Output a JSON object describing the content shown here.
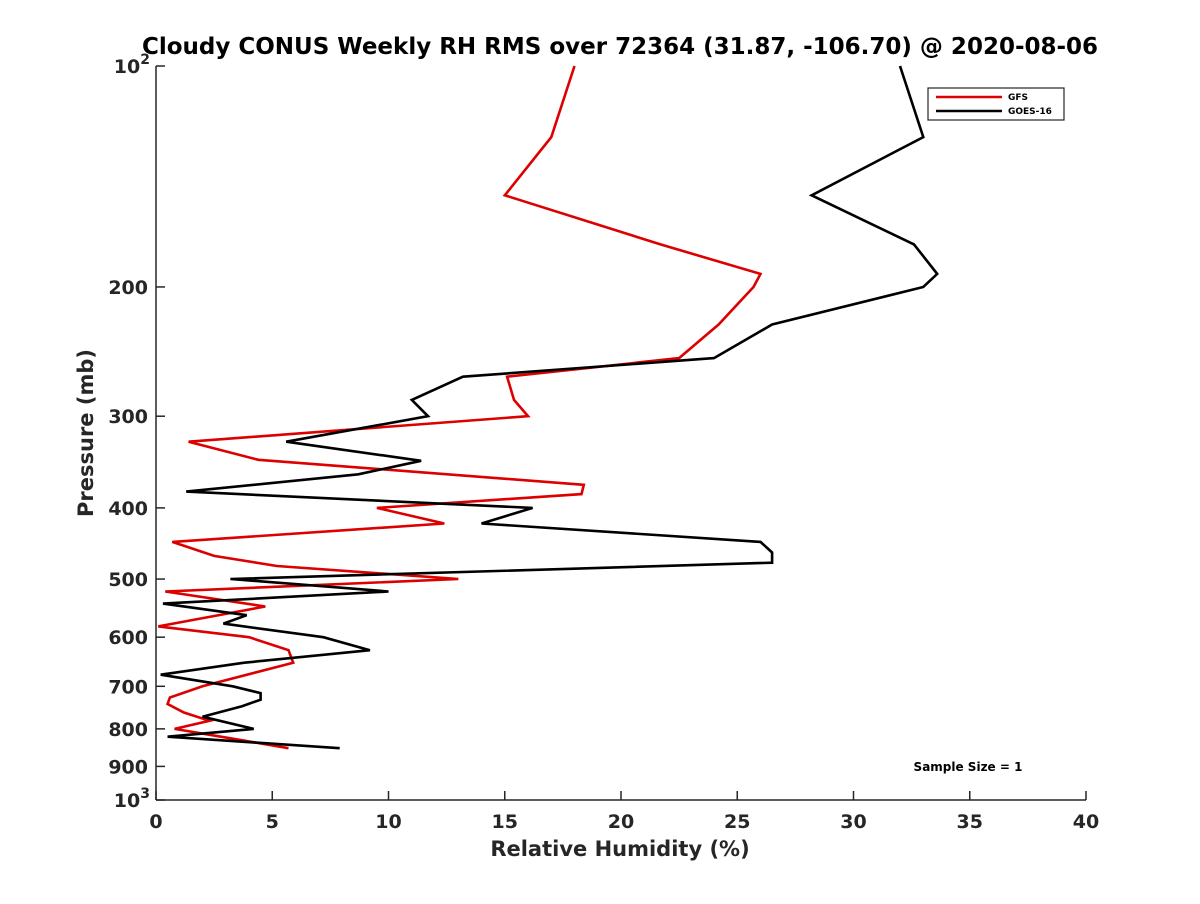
{
  "chart_data": {
    "type": "line",
    "title": "Cloudy CONUS Weekly RH RMS over 72364 (31.87, -106.70) @ 2020-08-06",
    "xlabel": "Relative Humidity (%)",
    "ylabel": "Pressure (mb)",
    "xlim": [
      0,
      40
    ],
    "ylim": [
      100,
      1000
    ],
    "y_scale": "log",
    "y_reversed": true,
    "x_ticks": [
      "0",
      "5",
      "10",
      "15",
      "20",
      "25",
      "30",
      "35",
      "40"
    ],
    "y_ticks": [
      {
        "value": 100,
        "label": "10",
        "sup": "2"
      },
      {
        "value": 200,
        "label": "200"
      },
      {
        "value": 300,
        "label": "300"
      },
      {
        "value": 400,
        "label": "400"
      },
      {
        "value": 500,
        "label": "500"
      },
      {
        "value": 600,
        "label": "600"
      },
      {
        "value": 700,
        "label": "700"
      },
      {
        "value": 800,
        "label": "800"
      },
      {
        "value": 900,
        "label": "900"
      },
      {
        "value": 1000,
        "label": "10",
        "sup": "3"
      }
    ],
    "grid": false,
    "legend": "top-right",
    "annotation": "Sample Size = 1",
    "series": [
      {
        "name": "GFS",
        "color": "#dd0000",
        "points": [
          [
            18.0,
            100
          ],
          [
            17.0,
            125
          ],
          [
            15.0,
            150
          ],
          [
            21.7,
            175
          ],
          [
            26.0,
            192
          ],
          [
            25.7,
            200
          ],
          [
            24.2,
            225
          ],
          [
            22.5,
            250
          ],
          [
            15.1,
            265
          ],
          [
            15.4,
            285
          ],
          [
            16.0,
            300
          ],
          [
            1.4,
            325
          ],
          [
            4.4,
            344
          ],
          [
            18.4,
            372
          ],
          [
            18.3,
            383
          ],
          [
            9.5,
            400
          ],
          [
            12.4,
            420
          ],
          [
            0.7,
            445
          ],
          [
            2.5,
            465
          ],
          [
            5.2,
            480
          ],
          [
            13.0,
            500
          ],
          [
            0.4,
            520
          ],
          [
            4.7,
            545
          ],
          [
            0.1,
            580
          ],
          [
            4.0,
            600
          ],
          [
            5.7,
            625
          ],
          [
            5.9,
            650
          ],
          [
            2.0,
            700
          ],
          [
            0.6,
            725
          ],
          [
            0.5,
            740
          ],
          [
            1.2,
            760
          ],
          [
            2.3,
            780
          ],
          [
            0.8,
            800
          ],
          [
            3.3,
            825
          ],
          [
            5.7,
            850
          ]
        ]
      },
      {
        "name": "GOES-16",
        "color": "#000000",
        "points": [
          [
            32.0,
            100
          ],
          [
            33.0,
            125
          ],
          [
            28.2,
            150
          ],
          [
            32.6,
            175
          ],
          [
            33.6,
            192
          ],
          [
            33.0,
            200
          ],
          [
            26.5,
            225
          ],
          [
            24.0,
            250
          ],
          [
            13.2,
            265
          ],
          [
            11.0,
            285
          ],
          [
            11.7,
            300
          ],
          [
            5.6,
            325
          ],
          [
            11.4,
            345
          ],
          [
            8.7,
            360
          ],
          [
            1.3,
            380
          ],
          [
            16.2,
            400
          ],
          [
            14.0,
            420
          ],
          [
            26.0,
            445
          ],
          [
            26.5,
            460
          ],
          [
            26.5,
            475
          ],
          [
            3.2,
            500
          ],
          [
            10.0,
            520
          ],
          [
            0.3,
            540
          ],
          [
            3.9,
            560
          ],
          [
            2.9,
            575
          ],
          [
            7.2,
            600
          ],
          [
            9.2,
            625
          ],
          [
            3.8,
            650
          ],
          [
            0.2,
            675
          ],
          [
            3.3,
            700
          ],
          [
            4.5,
            715
          ],
          [
            4.5,
            730
          ],
          [
            3.7,
            745
          ],
          [
            2.0,
            770
          ],
          [
            4.2,
            800
          ],
          [
            0.5,
            820
          ],
          [
            7.9,
            850
          ]
        ]
      }
    ]
  }
}
